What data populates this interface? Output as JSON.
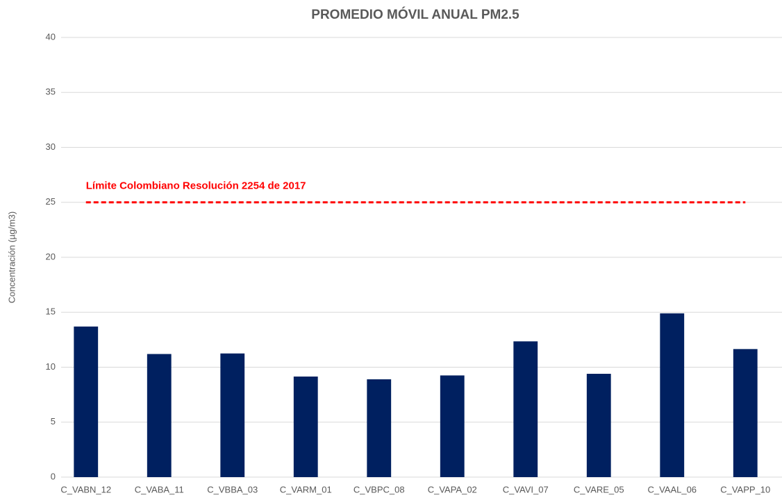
{
  "chart_data": {
    "type": "bar",
    "title": "PROMEDIO MÓVIL ANUAL PM2.5",
    "y_label": "Concentración (µg/m3)",
    "categories": [
      "C_VABN_12",
      "C_VABA_11",
      "C_VBBA_03",
      "C_VARM_01",
      "C_VBPC_08",
      "C_VAPA_02",
      "C_VAVI_07",
      "C_VARE_05",
      "C_VAAL_06",
      "C_VAPP_10"
    ],
    "values": [
      13.7,
      11.2,
      11.25,
      9.15,
      8.9,
      9.25,
      12.35,
      9.4,
      14.9,
      11.65
    ],
    "color": "#002060",
    "ylim": [
      0,
      40
    ],
    "yticks": [
      0,
      5,
      10,
      15,
      20,
      25,
      30,
      35,
      40
    ],
    "grid": true,
    "reference_line": {
      "value": 25,
      "label": "Límite Colombiano Resolución 2254 de 2017",
      "color": "#ff0000"
    }
  }
}
